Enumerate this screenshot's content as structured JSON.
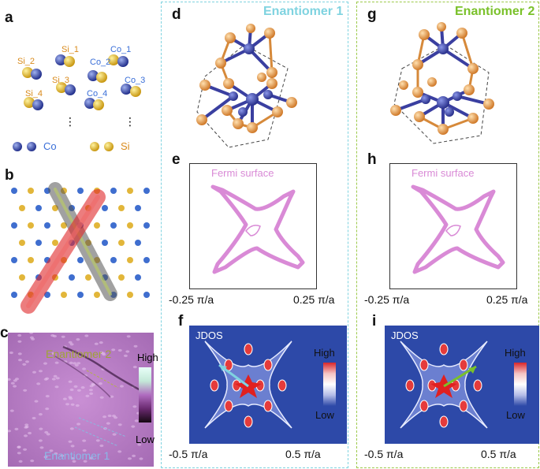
{
  "panel_labels": {
    "a": "a",
    "b": "b",
    "c": "c",
    "d": "d",
    "e": "e",
    "f": "f",
    "g": "g",
    "h": "h",
    "i": "i"
  },
  "panel_a": {
    "atom_labels": [
      "Si_1",
      "Co_1",
      "Si_2",
      "Co_2",
      "Si_3",
      "Co_3",
      "Si_4",
      "Co_4"
    ],
    "ellipsis": "⋮",
    "legend_co": "Co",
    "legend_si": "Si",
    "co_color": "#3a54b0",
    "si_color": "#e2a83a"
  },
  "panel_c": {
    "label_enantiomer2": "Enantiomer 2",
    "label_enantiomer1": "Enantiomer 1",
    "colorbar_high": "High",
    "colorbar_low": "Low"
  },
  "enantiomer1": {
    "title": "Enantiomer 1",
    "color": "#7fd3e0"
  },
  "enantiomer2": {
    "title": "Enantiomer 2",
    "color": "#7ac12a"
  },
  "fermi": {
    "title": "Fermi surface",
    "x_min": "-0.25 π/a",
    "x_max": "0.25 π/a",
    "color": "#d98ad6"
  },
  "jdos": {
    "title": "JDOS",
    "x_min": "-0.5 π/a",
    "x_max": "0.5 π/a",
    "high": "High",
    "low": "Low"
  }
}
